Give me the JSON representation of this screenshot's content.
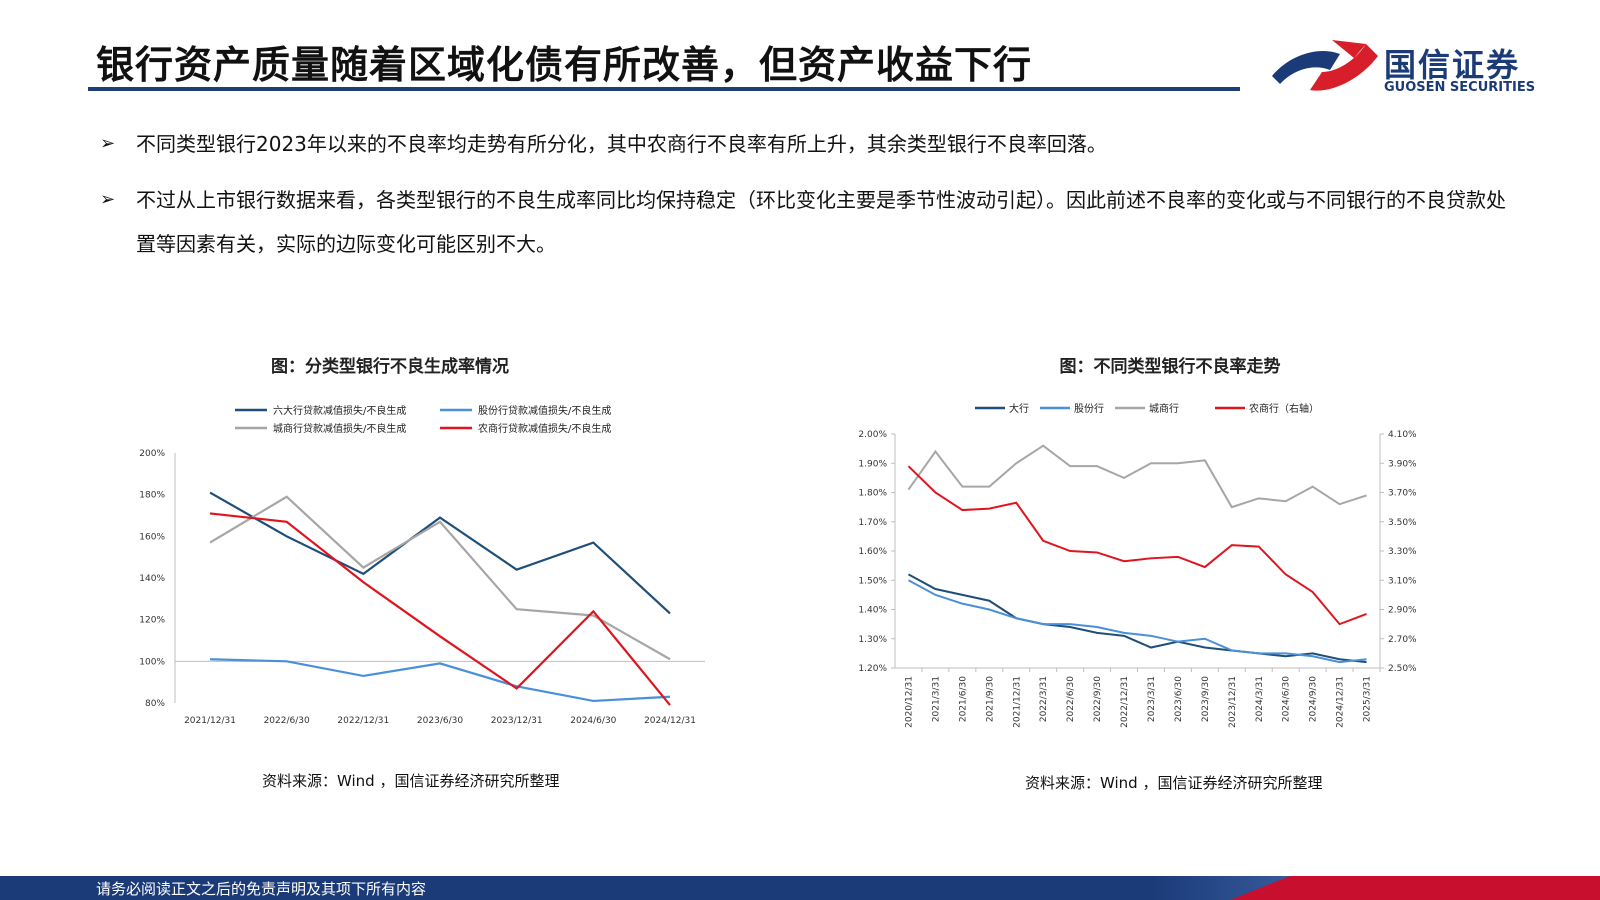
{
  "header": {
    "title": "银行资产质量随着区域化债有所改善，但资产收益下行",
    "logo_cn": "国信证券",
    "logo_en": "GUOSEN SECURITIES"
  },
  "bullets": [
    {
      "mark": "➢",
      "text": "不同类型银行2023年以来的不良率均走势有所分化，其中农商行不良率有所上升，其余类型银行不良率回落。"
    },
    {
      "mark": "➢",
      "text": "不过从上市银行数据来看，各类型银行的不良生成率同比均保持稳定（环比变化主要是季节性波动引起）。因此前述不良率的变化或与不同银行的不良贷款处置等因素有关，实际的边际变化可能区别不大。"
    }
  ],
  "chart1": {
    "title": "图：分类型银行不良生成率情况",
    "source": "资料来源：Wind ，国信证券经济研究所整理"
  },
  "chart2": {
    "title": "图：不同类型银行不良率走势",
    "source": "资料来源：Wind ，国信证券经济研究所整理"
  },
  "footer": {
    "text": "请务必阅读正文之后的免责声明及其项下所有内容"
  },
  "colors": {
    "navy": "#1f4e79",
    "blue": "#4a90d9",
    "gray": "#a6a6a6",
    "red": "#e0141e",
    "brand": "#1b3a78"
  },
  "chart_data": [
    {
      "type": "line",
      "title": "图：分类型银行不良生成率情况",
      "categories": [
        "2021/12/31",
        "2022/6/30",
        "2022/12/31",
        "2023/6/30",
        "2023/12/31",
        "2024/6/30",
        "2024/12/31"
      ],
      "ylim": [
        80,
        200
      ],
      "yticks": [
        "80%",
        "100%",
        "120%",
        "140%",
        "160%",
        "180%",
        "200%"
      ],
      "legend": "top",
      "series": [
        {
          "name": "六大行贷款减值损失/不良生成",
          "color": "#1f4e79",
          "values": [
            181,
            160,
            142,
            169,
            144,
            157,
            123
          ]
        },
        {
          "name": "股份行贷款减值损失/不良生成",
          "color": "#4a90d9",
          "values": [
            101,
            100,
            93,
            99,
            88,
            81,
            83
          ]
        },
        {
          "name": "城商行贷款减值损失/不良生成",
          "color": "#a6a6a6",
          "values": [
            157,
            179,
            145,
            167,
            125,
            122,
            101
          ]
        },
        {
          "name": "农商行贷款减值损失/不良生成",
          "color": "#e0141e",
          "values": [
            171,
            167,
            138,
            112,
            87,
            124,
            79
          ]
        }
      ]
    },
    {
      "type": "line",
      "title": "图：不同类型银行不良率走势",
      "categories": [
        "2020/12/31",
        "2021/3/31",
        "2021/6/30",
        "2021/9/30",
        "2021/12/31",
        "2022/3/31",
        "2022/6/30",
        "2022/9/30",
        "2022/12/31",
        "2023/3/31",
        "2023/6/30",
        "2023/9/30",
        "2023/12/31",
        "2024/3/31",
        "2024/6/30",
        "2024/9/30",
        "2024/12/31",
        "2025/3/31"
      ],
      "ylim_left": [
        1.2,
        2.0
      ],
      "ylim_right": [
        2.5,
        4.1
      ],
      "yticks_left": [
        "1.20%",
        "1.30%",
        "1.40%",
        "1.50%",
        "1.60%",
        "1.70%",
        "1.80%",
        "1.90%",
        "2.00%"
      ],
      "yticks_right": [
        "2.50%",
        "2.70%",
        "2.90%",
        "3.10%",
        "3.30%",
        "3.50%",
        "3.70%",
        "3.90%",
        "4.10%"
      ],
      "legend": "top",
      "series": [
        {
          "name": "大行",
          "axis": "left",
          "color": "#1f4e79",
          "values": [
            1.52,
            1.47,
            1.45,
            1.43,
            1.37,
            1.35,
            1.34,
            1.32,
            1.31,
            1.27,
            1.29,
            1.27,
            1.26,
            1.25,
            1.24,
            1.25,
            1.23,
            1.22
          ]
        },
        {
          "name": "股份行",
          "axis": "left",
          "color": "#4a90d9",
          "values": [
            1.5,
            1.45,
            1.42,
            1.4,
            1.37,
            1.35,
            1.35,
            1.34,
            1.32,
            1.31,
            1.29,
            1.3,
            1.26,
            1.25,
            1.25,
            1.24,
            1.22,
            1.23
          ]
        },
        {
          "name": "城商行",
          "axis": "left",
          "color": "#a6a6a6",
          "values": [
            1.81,
            1.94,
            1.82,
            1.82,
            1.9,
            1.96,
            1.89,
            1.89,
            1.85,
            1.9,
            1.9,
            1.91,
            1.75,
            1.78,
            1.77,
            1.82,
            1.76,
            1.79
          ]
        },
        {
          "name": "农商行（右轴）",
          "axis": "right",
          "color": "#e0141e",
          "values": [
            3.88,
            3.7,
            3.58,
            3.59,
            3.63,
            3.37,
            3.3,
            3.29,
            3.23,
            3.25,
            3.26,
            3.19,
            3.34,
            3.33,
            3.14,
            3.02,
            2.8,
            2.87
          ]
        }
      ]
    }
  ]
}
